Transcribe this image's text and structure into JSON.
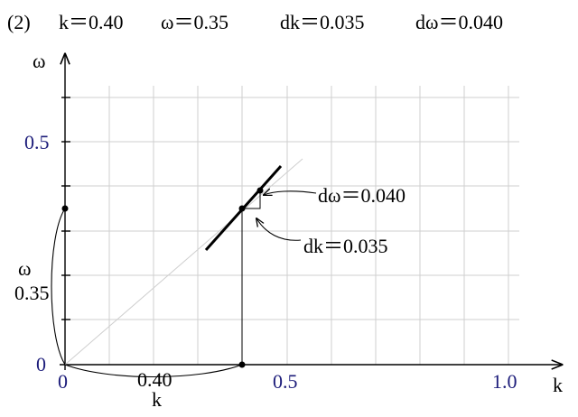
{
  "header": {
    "label": "(2)",
    "params": [
      "k＝0.40",
      "ω＝0.35",
      "dk＝0.035",
      "dω＝0.040"
    ]
  },
  "axes": {
    "y_label": "ω",
    "x_label": "k",
    "y_ticks": [
      "0.5"
    ],
    "x_ticks": [
      "0.5",
      "1.0"
    ],
    "origin_y": "0",
    "origin_x": "0"
  },
  "annotations": {
    "omega_name": "ω",
    "omega_value": "0.35",
    "k_value": "0.40",
    "k_name": "k",
    "d_omega": "dω＝0.040",
    "d_k": "dk＝0.035"
  }
}
